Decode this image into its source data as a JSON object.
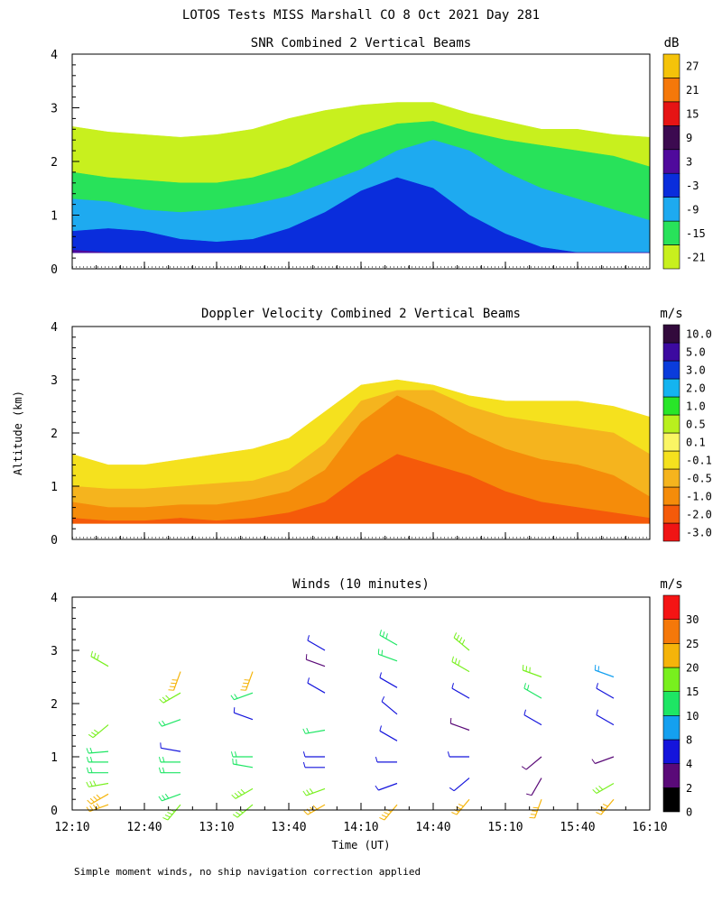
{
  "title": "LOTOS Tests MISS Marshall CO   8 Oct 2021 Day 281",
  "y_axis_label": "Altitude (km)",
  "x_axis_label": "Time (UT)",
  "footnote": "Simple moment winds, no ship navigation correction applied",
  "time_ticks": [
    "12:10",
    "12:40",
    "13:10",
    "13:40",
    "14:10",
    "14:40",
    "15:10",
    "15:40",
    "16:10"
  ],
  "altitude_ticks": [
    "0",
    "1",
    "2",
    "3",
    "4"
  ],
  "chart_data": [
    {
      "id": "snr",
      "type": "heatmap",
      "title": "SNR Combined 2 Vertical Beams",
      "xlabel": "",
      "ylabel": "Altitude (km)",
      "xlim": [
        "12:10",
        "16:10"
      ],
      "ylim": [
        0,
        4
      ],
      "colorbar": {
        "unit": "dB",
        "labels": [
          "-21",
          "-15",
          "-9",
          "-3",
          "3",
          "9",
          "15",
          "21",
          "27"
        ],
        "colors": [
          "#c8f01e",
          "#28e25a",
          "#1eaaf0",
          "#0a2ddc",
          "#4f0a9c",
          "#3c0a50",
          "#e61414",
          "#f5780a",
          "#f5c30a"
        ]
      },
      "layers": [
        {
          "level": "-21",
          "top_km": [
            2.65,
            2.55,
            2.5,
            2.45,
            2.5,
            2.6,
            2.8,
            2.95,
            3.05,
            3.1,
            3.1,
            2.9,
            2.75,
            2.6,
            2.6,
            2.5,
            2.45
          ]
        },
        {
          "level": "-15",
          "top_km": [
            1.8,
            1.7,
            1.65,
            1.6,
            1.6,
            1.7,
            1.9,
            2.2,
            2.5,
            2.7,
            2.75,
            2.55,
            2.4,
            2.3,
            2.2,
            2.1,
            1.9
          ]
        },
        {
          "level": "-9",
          "top_km": [
            1.3,
            1.25,
            1.1,
            1.05,
            1.1,
            1.2,
            1.35,
            1.6,
            1.85,
            2.2,
            2.4,
            2.2,
            1.8,
            1.5,
            1.3,
            1.1,
            0.9
          ]
        },
        {
          "level": "-3",
          "top_km": [
            0.7,
            0.75,
            0.7,
            0.55,
            0.5,
            0.55,
            0.75,
            1.05,
            1.45,
            1.7,
            1.5,
            1.0,
            0.65,
            0.4,
            0.0,
            0.0,
            0.0
          ]
        },
        {
          "level": "3",
          "top_km": [
            0.35,
            0.3,
            0.2,
            0.0,
            0.0,
            0.0,
            0.0,
            0.0,
            0.0,
            0.0,
            0.0,
            0.0,
            0.0,
            0.0,
            0.0,
            0.0,
            0.0
          ]
        }
      ]
    },
    {
      "id": "doppler",
      "type": "heatmap",
      "title": "Doppler Velocity Combined 2 Vertical Beams",
      "xlabel": "",
      "ylabel": "Altitude (km)",
      "xlim": [
        "12:10",
        "16:10"
      ],
      "ylim": [
        0,
        4
      ],
      "colorbar": {
        "unit": "m/s",
        "labels": [
          "-3.0",
          "-2.0",
          "-1.0",
          "-0.5",
          "-0.1",
          "0.1",
          "0.5",
          "1.0",
          "2.0",
          "3.0",
          "5.0",
          "10.0"
        ],
        "colors": [
          "#f01414",
          "#f55a0a",
          "#f58c0a",
          "#f5b41e",
          "#f5e11e",
          "#faf564",
          "#b9f01e",
          "#28e628",
          "#14b4f0",
          "#0a3cdc",
          "#3c0aa0",
          "#320a3c"
        ]
      },
      "layers": [
        {
          "level": "-0.1",
          "top_km": [
            1.6,
            1.4,
            1.4,
            1.5,
            1.6,
            1.7,
            1.9,
            2.4,
            2.9,
            3.0,
            2.9,
            2.7,
            2.6,
            2.6,
            2.6,
            2.5,
            2.3
          ]
        },
        {
          "level": "-0.5",
          "top_km": [
            1.0,
            0.95,
            0.95,
            1.0,
            1.05,
            1.1,
            1.3,
            1.8,
            2.6,
            2.8,
            2.8,
            2.5,
            2.3,
            2.2,
            2.1,
            2.0,
            1.6
          ]
        },
        {
          "level": "-1.0",
          "top_km": [
            0.7,
            0.6,
            0.6,
            0.65,
            0.65,
            0.75,
            0.9,
            1.3,
            2.2,
            2.7,
            2.4,
            2.0,
            1.7,
            1.5,
            1.4,
            1.2,
            0.8
          ]
        },
        {
          "level": "-2.0",
          "top_km": [
            0.4,
            0.35,
            0.35,
            0.4,
            0.35,
            0.4,
            0.5,
            0.7,
            1.2,
            1.6,
            1.4,
            1.2,
            0.9,
            0.7,
            0.6,
            0.5,
            0.4
          ]
        }
      ]
    },
    {
      "id": "winds",
      "type": "scatter",
      "title": "Winds (10 minutes)",
      "xlabel": "Time (UT)",
      "ylabel": "Altitude (km)",
      "xlim": [
        "12:10",
        "16:10"
      ],
      "ylim": [
        0,
        4
      ],
      "colorbar": {
        "unit": "m/s",
        "labels": [
          "0",
          "2",
          "4",
          "8",
          "10",
          "15",
          "20",
          "25",
          "30"
        ],
        "colors": [
          "#000000",
          "#5a0a78",
          "#1414dc",
          "#14a0f0",
          "#1ee664",
          "#78f01e",
          "#f5b40a",
          "#f5780a",
          "#f51414"
        ]
      },
      "profiles": [
        {
          "time": "12:25",
          "barbs": [
            {
              "alt": 0.1,
              "speed": 22,
              "dir": 250
            },
            {
              "alt": 0.3,
              "speed": 22,
              "dir": 240
            },
            {
              "alt": 0.5,
              "speed": 17,
              "dir": 260
            },
            {
              "alt": 0.7,
              "speed": 11,
              "dir": 270
            },
            {
              "alt": 0.9,
              "speed": 11,
              "dir": 270
            },
            {
              "alt": 1.1,
              "speed": 11,
              "dir": 265
            },
            {
              "alt": 1.6,
              "speed": 16,
              "dir": 230
            },
            {
              "alt": 2.7,
              "speed": 17,
              "dir": 300
            }
          ]
        },
        {
          "time": "12:55",
          "barbs": [
            {
              "alt": 0.1,
              "speed": 18,
              "dir": 220
            },
            {
              "alt": 0.3,
              "speed": 13,
              "dir": 250
            },
            {
              "alt": 0.7,
              "speed": 10,
              "dir": 270
            },
            {
              "alt": 0.9,
              "speed": 10,
              "dir": 270
            },
            {
              "alt": 1.1,
              "speed": 6,
              "dir": 280
            },
            {
              "alt": 1.7,
              "speed": 12,
              "dir": 250
            },
            {
              "alt": 2.2,
              "speed": 17,
              "dir": 240
            },
            {
              "alt": 2.6,
              "speed": 22,
              "dir": 200
            }
          ]
        },
        {
          "time": "13:25",
          "barbs": [
            {
              "alt": 0.1,
              "speed": 17,
              "dir": 230
            },
            {
              "alt": 0.4,
              "speed": 18,
              "dir": 240
            },
            {
              "alt": 0.8,
              "speed": 10,
              "dir": 280
            },
            {
              "alt": 1.0,
              "speed": 10,
              "dir": 270
            },
            {
              "alt": 1.7,
              "speed": 6,
              "dir": 290
            },
            {
              "alt": 2.2,
              "speed": 11,
              "dir": 250
            },
            {
              "alt": 2.6,
              "speed": 20,
              "dir": 200
            }
          ]
        },
        {
          "time": "13:55",
          "barbs": [
            {
              "alt": 0.1,
              "speed": 20,
              "dir": 240
            },
            {
              "alt": 0.4,
              "speed": 17,
              "dir": 250
            },
            {
              "alt": 0.8,
              "speed": 4,
              "dir": 270
            },
            {
              "alt": 1.0,
              "speed": 6,
              "dir": 270
            },
            {
              "alt": 1.5,
              "speed": 12,
              "dir": 260
            },
            {
              "alt": 2.2,
              "speed": 5,
              "dir": 300
            },
            {
              "alt": 2.7,
              "speed": 3,
              "dir": 290
            },
            {
              "alt": 3.0,
              "speed": 4,
              "dir": 300
            }
          ]
        },
        {
          "time": "14:25",
          "barbs": [
            {
              "alt": 0.1,
              "speed": 22,
              "dir": 220
            },
            {
              "alt": 0.5,
              "speed": 4,
              "dir": 250
            },
            {
              "alt": 0.9,
              "speed": 4,
              "dir": 270
            },
            {
              "alt": 1.3,
              "speed": 5,
              "dir": 300
            },
            {
              "alt": 1.8,
              "speed": 4,
              "dir": 310
            },
            {
              "alt": 2.3,
              "speed": 5,
              "dir": 300
            },
            {
              "alt": 2.8,
              "speed": 12,
              "dir": 290
            },
            {
              "alt": 3.1,
              "speed": 13,
              "dir": 300
            }
          ]
        },
        {
          "time": "14:55",
          "barbs": [
            {
              "alt": 0.2,
              "speed": 22,
              "dir": 220
            },
            {
              "alt": 0.6,
              "speed": 5,
              "dir": 230
            },
            {
              "alt": 1.0,
              "speed": 4,
              "dir": 270
            },
            {
              "alt": 1.5,
              "speed": 3,
              "dir": 290
            },
            {
              "alt": 2.1,
              "speed": 6,
              "dir": 300
            },
            {
              "alt": 2.6,
              "speed": 16,
              "dir": 300
            },
            {
              "alt": 3.0,
              "speed": 18,
              "dir": 310
            }
          ]
        },
        {
          "time": "15:25",
          "barbs": [
            {
              "alt": 0.2,
              "speed": 22,
              "dir": 200
            },
            {
              "alt": 0.6,
              "speed": 3,
              "dir": 210
            },
            {
              "alt": 1.0,
              "speed": 3,
              "dir": 230
            },
            {
              "alt": 1.6,
              "speed": 4,
              "dir": 300
            },
            {
              "alt": 2.1,
              "speed": 10,
              "dir": 300
            },
            {
              "alt": 2.5,
              "speed": 17,
              "dir": 290
            }
          ]
        },
        {
          "time": "15:55",
          "barbs": [
            {
              "alt": 0.2,
              "speed": 22,
              "dir": 220
            },
            {
              "alt": 0.5,
              "speed": 17,
              "dir": 240
            },
            {
              "alt": 1.0,
              "speed": 3,
              "dir": 250
            },
            {
              "alt": 1.6,
              "speed": 4,
              "dir": 300
            },
            {
              "alt": 2.1,
              "speed": 4,
              "dir": 300
            },
            {
              "alt": 2.5,
              "speed": 8,
              "dir": 290
            }
          ]
        }
      ]
    }
  ]
}
